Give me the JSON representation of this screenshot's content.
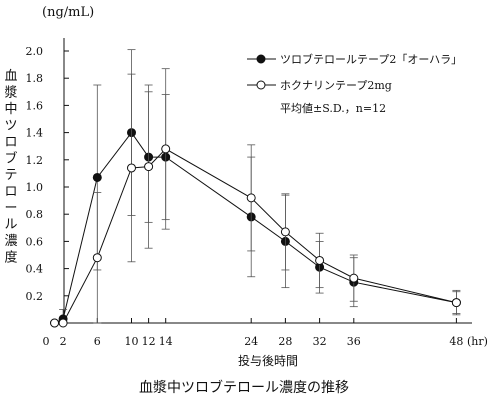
{
  "chart_data": {
    "type": "line",
    "title": "血漿中ツロブテロール濃度の推移",
    "xlabel": "投与後時間",
    "x_unit": "(hr)",
    "ylabel": "血漿中ツロブテロール濃度",
    "y_unit": "(ng/mL)",
    "x_ticks": [
      0,
      2,
      6,
      10,
      12,
      14,
      24,
      28,
      32,
      36,
      48
    ],
    "x_tick_labels": [
      "0",
      "2",
      "6",
      "10",
      "12",
      "14",
      "24",
      "28",
      "32",
      "36",
      "48"
    ],
    "y_ticks": [
      0.2,
      0.4,
      0.6,
      0.8,
      1.0,
      1.2,
      1.4,
      1.6,
      1.8,
      2.0
    ],
    "y_tick_labels": [
      "0.2",
      "0.4",
      "0.6",
      "0.8",
      "1.0",
      "1.2",
      "1.4",
      "1.6",
      "1.8",
      "2.0"
    ],
    "xlim": [
      0,
      50
    ],
    "ylim": [
      0,
      2.15
    ],
    "grid": false,
    "legend_position": "top-right",
    "stat_note": "平均値±S.D.，n=12",
    "series": [
      {
        "name": "ツロブテロールテープ2「オーハラ」",
        "marker": "filled-circle",
        "color": "#111111",
        "points": [
          {
            "x": 1,
            "y": 0.0,
            "sd": 0
          },
          {
            "x": 2,
            "y": 0.03,
            "sd": 0.07
          },
          {
            "x": 6,
            "y": 1.07,
            "sd": 0.68
          },
          {
            "x": 10,
            "y": 1.4,
            "sd": 0.61
          },
          {
            "x": 12,
            "y": 1.22,
            "sd": 0.48
          },
          {
            "x": 14,
            "y": 1.22,
            "sd": 0.46
          },
          {
            "x": 24,
            "y": 0.78,
            "sd": 0.44
          },
          {
            "x": 28,
            "y": 0.6,
            "sd": 0.34
          },
          {
            "x": 32,
            "y": 0.41,
            "sd": 0.19
          },
          {
            "x": 36,
            "y": 0.3,
            "sd": 0.18
          },
          {
            "x": 48,
            "y": 0.15,
            "sd": 0.08
          }
        ]
      },
      {
        "name": "ホクナリンテープ2mg",
        "marker": "open-circle",
        "color": "#111111",
        "points": [
          {
            "x": 1,
            "y": 0.0,
            "sd": 0
          },
          {
            "x": 2,
            "y": 0.0,
            "sd": 0
          },
          {
            "x": 6,
            "y": 0.48,
            "sd": 0.48
          },
          {
            "x": 10,
            "y": 1.14,
            "sd": 0.69
          },
          {
            "x": 12,
            "y": 1.15,
            "sd": 0.6
          },
          {
            "x": 14,
            "y": 1.28,
            "sd": 0.59
          },
          {
            "x": 24,
            "y": 0.92,
            "sd": 0.39
          },
          {
            "x": 28,
            "y": 0.67,
            "sd": 0.28
          },
          {
            "x": 32,
            "y": 0.46,
            "sd": 0.2
          },
          {
            "x": 36,
            "y": 0.33,
            "sd": 0.17
          },
          {
            "x": 48,
            "y": 0.15,
            "sd": 0.09
          }
        ]
      }
    ]
  }
}
